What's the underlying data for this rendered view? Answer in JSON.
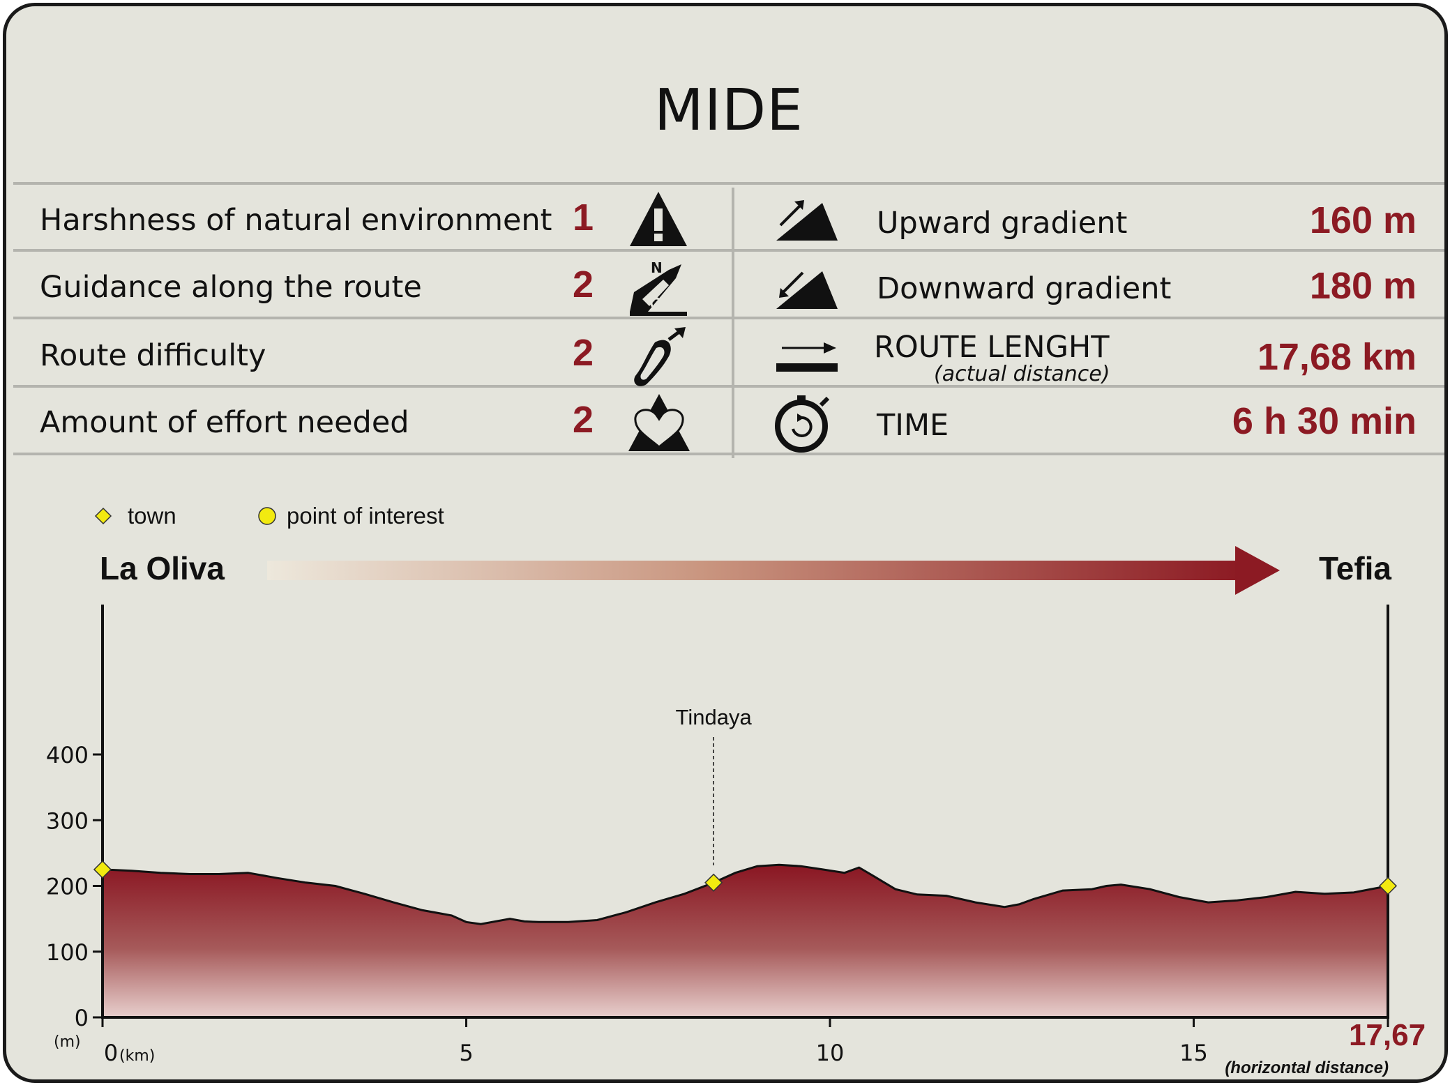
{
  "title": "MIDE",
  "left_rows": [
    {
      "label": "Harshness of natural environment",
      "value": "1",
      "icon": "warning-triangle-icon"
    },
    {
      "label": "Guidance along the route",
      "value": "2",
      "icon": "signpost-icon"
    },
    {
      "label": "Route difficulty",
      "value": "2",
      "icon": "footprint-icon"
    },
    {
      "label": "Amount of effort needed",
      "value": "2",
      "icon": "heart-mountain-icon"
    }
  ],
  "right_rows": [
    {
      "label": "Upward gradient",
      "value": "160 m",
      "icon": "upward-slope-icon"
    },
    {
      "label": "Downward gradient",
      "value": "180 m",
      "icon": "downward-slope-icon"
    },
    {
      "label": "ROUTE LENGHT",
      "sublabel": "(actual distance)",
      "value": "17,68 km",
      "icon": "route-length-arrow-icon"
    },
    {
      "label": "TIME",
      "value": "6 h 30 min",
      "icon": "stopwatch-icon"
    }
  ],
  "colors": {
    "accent": "#8c1a23",
    "background": "#e4e4dc",
    "marker": "#f2ea10"
  },
  "chart_data": {
    "type": "area",
    "start_label": "La Oliva",
    "end_label": "Tefia",
    "legend": [
      {
        "label": "town",
        "marker": "diamond"
      },
      {
        "label": "point of interest",
        "marker": "circle"
      }
    ],
    "y_unit": "(m)",
    "x_unit": "(km)",
    "x_note": "(horizontal distance)",
    "x_end_value": "17,67",
    "xlim": [
      0,
      17.67
    ],
    "ylim": [
      0,
      400
    ],
    "x_ticks": [
      "0",
      "5",
      "10",
      "15"
    ],
    "y_ticks": [
      "0",
      "100",
      "200",
      "300",
      "400"
    ],
    "annotation": {
      "label": "Tindaya",
      "x": 8.4
    },
    "towns": [
      {
        "x": 0,
        "y": 225
      },
      {
        "x": 8.4,
        "y": 205
      },
      {
        "x": 17.67,
        "y": 200
      }
    ],
    "profile_x": [
      0,
      0.4,
      0.8,
      1.2,
      1.6,
      2.0,
      2.4,
      2.8,
      3.2,
      3.6,
      4.0,
      4.4,
      4.8,
      5.0,
      5.2,
      5.6,
      5.8,
      6.0,
      6.4,
      6.8,
      7.2,
      7.6,
      8.0,
      8.4,
      8.7,
      9.0,
      9.3,
      9.6,
      9.9,
      10.2,
      10.4,
      10.6,
      10.9,
      11.2,
      11.6,
      12.0,
      12.4,
      12.6,
      12.8,
      13.2,
      13.6,
      13.8,
      14.0,
      14.4,
      14.8,
      15.2,
      15.6,
      16.0,
      16.4,
      16.8,
      17.2,
      17.67
    ],
    "profile_y": [
      225,
      223,
      220,
      218,
      218,
      220,
      212,
      205,
      200,
      188,
      175,
      163,
      155,
      145,
      142,
      150,
      146,
      145,
      145,
      148,
      160,
      175,
      188,
      205,
      220,
      230,
      232,
      230,
      225,
      220,
      228,
      215,
      195,
      187,
      185,
      175,
      168,
      172,
      180,
      193,
      195,
      200,
      202,
      195,
      183,
      175,
      178,
      183,
      191,
      188,
      190,
      200
    ]
  }
}
